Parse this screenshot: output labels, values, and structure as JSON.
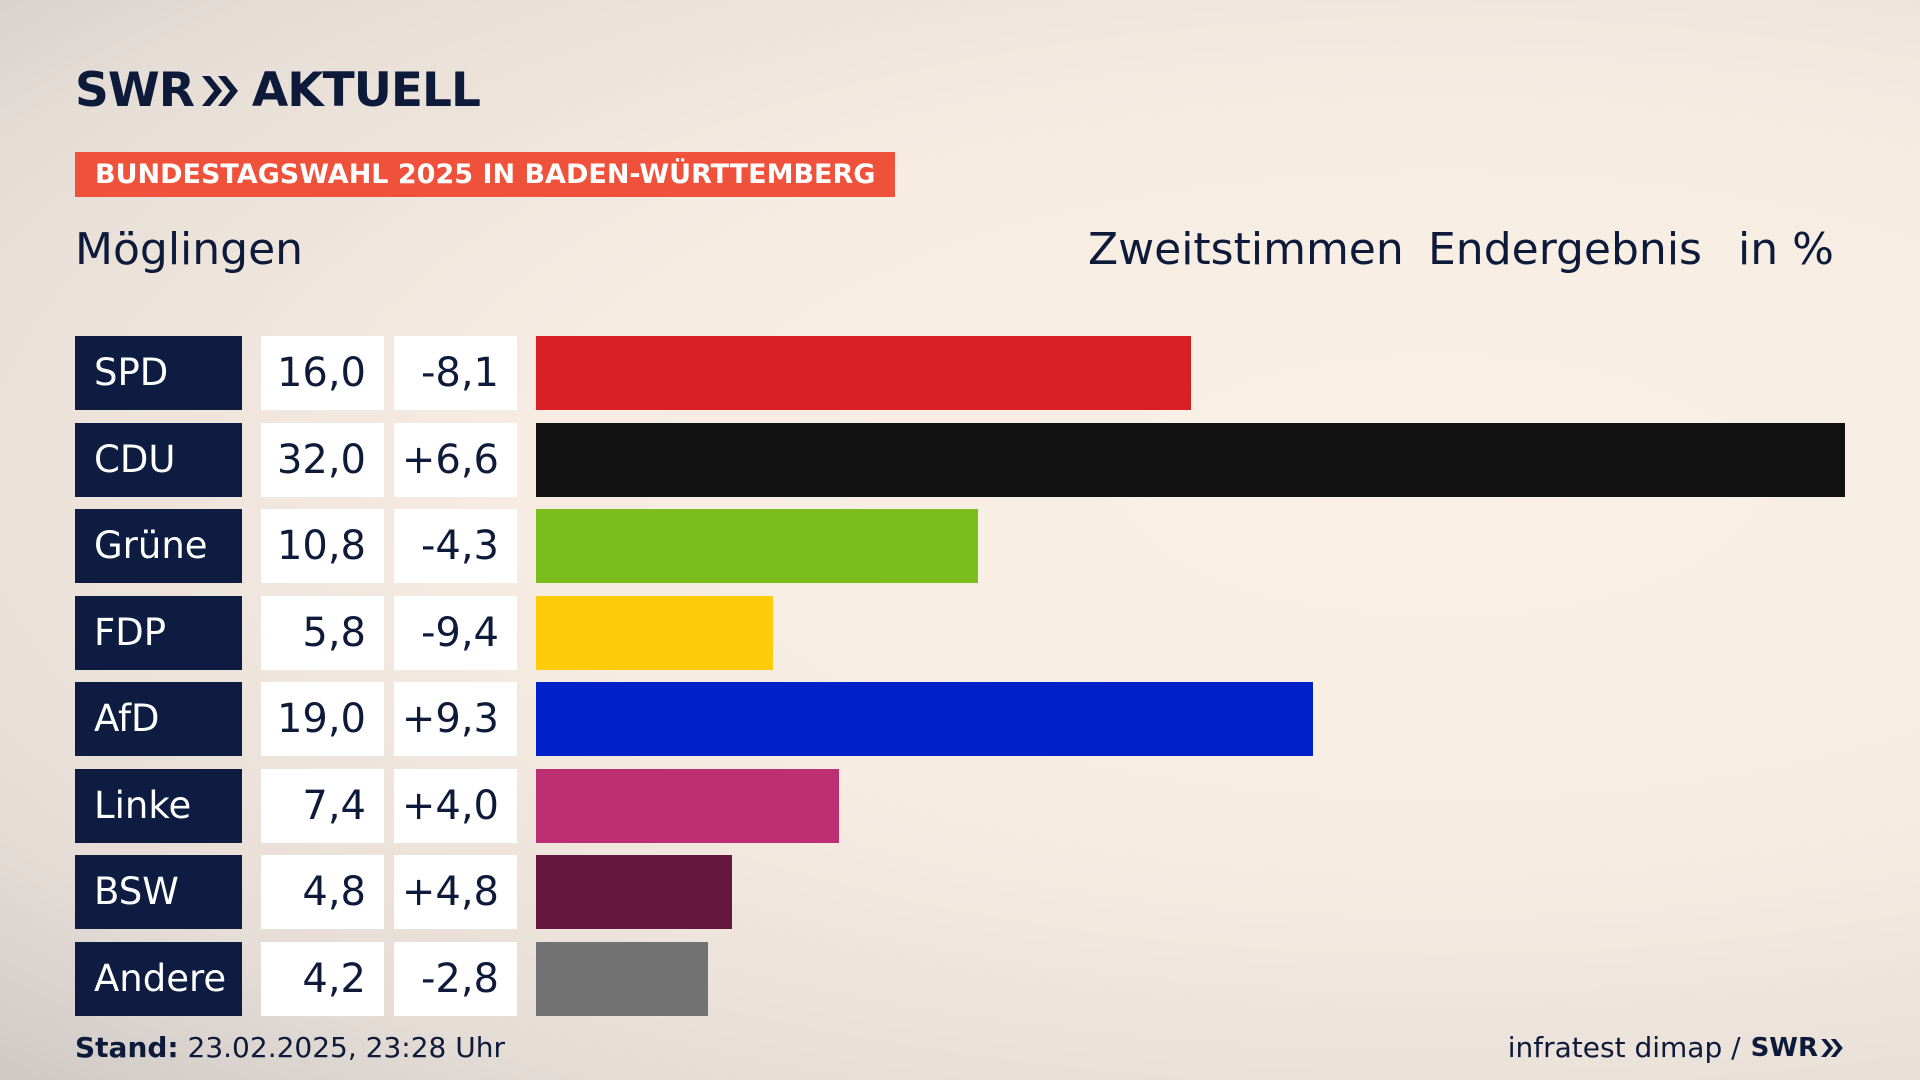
{
  "header": {
    "logo_main": "SWR",
    "logo_sub": "AKTUELL",
    "banner": "BUNDESTAGSWAHL 2025 IN BADEN-WÜRTTEMBERG",
    "place": "Möglingen",
    "col_zweit": "Zweitstimmen",
    "col_end": "Endergebnis",
    "col_unit": "in %"
  },
  "chart_data": {
    "type": "bar",
    "categories": [
      "SPD",
      "CDU",
      "Grüne",
      "FDP",
      "AfD",
      "Linke",
      "BSW",
      "Andere"
    ],
    "values_text": [
      "16,0",
      "32,0",
      "10,8",
      "5,8",
      "19,0",
      "7,4",
      "4,8",
      "4,2"
    ],
    "diff_text": [
      "-8,1",
      "+6,6",
      "-4,3",
      "-9,4",
      "+9,3",
      "+4,0",
      "+4,8",
      "-2,8"
    ],
    "values": [
      16.0,
      32.0,
      10.8,
      5.8,
      19.0,
      7.4,
      4.8,
      4.2
    ],
    "diffs": [
      -8.1,
      6.6,
      -4.3,
      -9.4,
      9.3,
      4.0,
      4.8,
      -2.8
    ],
    "colors": [
      "#d81f26",
      "#121212",
      "#7abd1c",
      "#fecc0b",
      "#0020c9",
      "#bc3073",
      "#66173d",
      "#727272"
    ],
    "xlim": [
      0,
      32
    ]
  },
  "footer": {
    "stand_label": "Stand:",
    "stand_value": "23.02.2025, 23:28 Uhr",
    "source": "infratest dimap /",
    "source_logo": "SWR"
  }
}
